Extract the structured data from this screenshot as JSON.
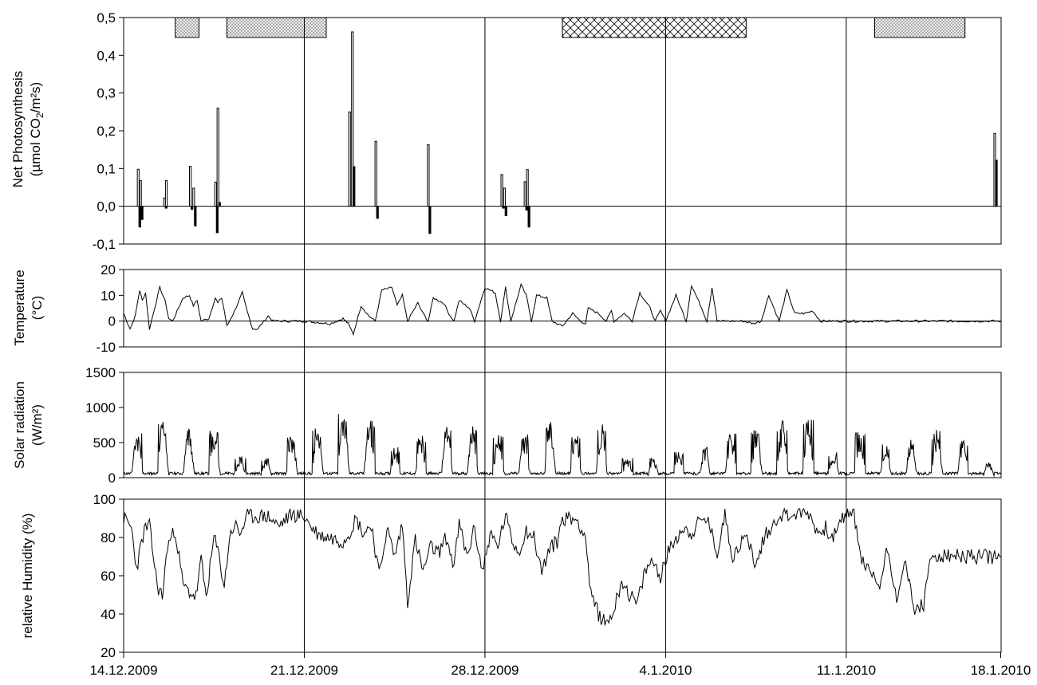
{
  "chart_data": [
    {
      "type": "bar",
      "ylabel_line1": "Net Photosynthesis",
      "ylabel_line2_pre": "(µmol CO",
      "ylabel_line2_sub": "2",
      "ylabel_line2_post": "/m²s)",
      "ylim": [
        -0.1,
        0.5
      ],
      "yticks": [
        "-0,1",
        "0,0",
        "0,1",
        "0,2",
        "0,3",
        "0,4",
        "0,5"
      ],
      "yticks_values": [
        -0.1,
        0,
        0.1,
        0.2,
        0.3,
        0.4,
        0.5
      ],
      "grid": false,
      "x_unit": "days since 14.12.2009",
      "bars": [
        {
          "x": 0.53,
          "values": [
            0.098,
            -0.055
          ]
        },
        {
          "x": 0.62,
          "values": [
            0.068,
            -0.035
          ]
        },
        {
          "x": 1.55,
          "values": [
            0.022,
            -0.005
          ]
        },
        {
          "x": 1.62,
          "values": [
            0.068
          ]
        },
        {
          "x": 2.55,
          "values": [
            0.106,
            -0.008
          ]
        },
        {
          "x": 2.68,
          "values": [
            0.048,
            -0.052
          ]
        },
        {
          "x": 3.53,
          "values": [
            0.064,
            -0.07
          ]
        },
        {
          "x": 3.62,
          "values": [
            0.26,
            0.01
          ]
        },
        {
          "x": 8.72,
          "values": [
            0.25
          ]
        },
        {
          "x": 8.83,
          "values": [
            0.462,
            0.105
          ]
        },
        {
          "x": 9.74,
          "values": [
            0.172,
            -0.032
          ]
        },
        {
          "x": 11.77,
          "values": [
            0.163,
            -0.072
          ]
        },
        {
          "x": 14.62,
          "values": [
            0.084,
            -0.005
          ]
        },
        {
          "x": 14.72,
          "values": [
            0.048,
            -0.025
          ]
        },
        {
          "x": 15.52,
          "values": [
            0.065,
            -0.01
          ]
        },
        {
          "x": 15.61,
          "values": [
            0.097,
            -0.055
          ]
        },
        {
          "x": 33.72,
          "values": [
            0.193,
            0.122
          ]
        }
      ],
      "periods": [
        {
          "start": 2.0,
          "end": 2.92,
          "pattern": "dotted",
          "row": "lower"
        },
        {
          "start": 4.0,
          "end": 7.85,
          "pattern": "dotted",
          "row": "lower"
        },
        {
          "start": 17.0,
          "end": 24.12,
          "pattern": "cross-hatched",
          "row": "lower"
        },
        {
          "start": 29.1,
          "end": 32.6,
          "pattern": "dotted",
          "row": "lower"
        }
      ]
    },
    {
      "type": "line",
      "ylabel_line1": "Temperature",
      "ylabel_line2": "(°C)",
      "ylim": [
        -10,
        20
      ],
      "yticks": [
        "-10",
        "0",
        "10",
        "20"
      ],
      "yticks_values": [
        -10,
        0,
        10,
        20
      ],
      "grid": false,
      "x_unit": "days since 14.12.2009",
      "x": [
        0.0,
        0.25,
        0.45,
        0.62,
        0.72,
        0.85,
        1.0,
        1.2,
        1.4,
        1.6,
        1.75,
        1.9,
        2.3,
        2.55,
        2.7,
        2.85,
        3.0,
        3.3,
        3.55,
        3.65,
        3.8,
        3.9,
        4.0,
        4.3,
        4.6,
        4.75,
        5.0,
        5.2,
        5.6,
        5.8,
        6.0,
        6.2,
        6.5,
        7.0,
        8.0,
        8.5,
        8.6,
        8.7,
        8.9,
        9.2,
        9.5,
        9.75,
        10.0,
        10.4,
        10.6,
        10.8,
        11.0,
        11.4,
        11.6,
        11.8,
        12.0,
        12.4,
        12.6,
        12.8,
        13.0,
        13.4,
        13.6,
        14.0,
        14.4,
        14.6,
        14.8,
        15.0,
        15.4,
        15.6,
        15.8,
        16.0,
        16.4,
        16.6,
        16.8,
        17.0,
        17.4,
        17.7,
        17.9,
        18.0,
        18.4,
        18.7,
        18.9,
        19.0,
        19.4,
        19.7,
        20.0,
        20.4,
        20.6,
        20.8,
        21.0,
        21.4,
        21.6,
        21.8,
        22.0,
        22.4,
        22.6,
        22.8,
        23.0,
        23.4,
        23.6,
        23.8,
        24.0,
        24.4,
        24.7,
        25.0,
        25.4,
        25.7,
        26.0,
        26.4,
        26.7,
        27.0,
        27.4,
        27.7,
        28.0,
        28.4,
        28.6,
        28.8,
        29.0,
        29.4,
        29.6,
        29.8,
        30.0,
        30.4,
        30.6,
        30.8,
        31.0,
        31.4,
        31.7,
        32.0,
        32.4,
        32.6,
        32.8,
        33.0,
        33.4,
        33.7,
        34.0
      ],
      "series": [
        {
          "values": [
            3,
            -3,
            2,
            12,
            8,
            11,
            -3,
            5,
            13,
            8,
            1,
            0,
            9,
            10,
            6,
            8,
            0,
            1,
            9,
            7,
            9,
            4,
            -2,
            4,
            11,
            5,
            -3,
            -3,
            2,
            0,
            0,
            0,
            0,
            0,
            -1,
            1,
            0,
            -1,
            -5,
            6,
            2,
            0,
            12,
            13,
            6,
            10,
            0,
            7,
            3,
            0,
            9,
            7,
            3,
            0,
            8,
            5,
            0,
            13,
            11,
            0,
            13,
            0,
            14,
            10,
            0,
            10,
            9,
            0,
            -1,
            -2,
            3,
            0,
            -1,
            5,
            3,
            0,
            4,
            0,
            3,
            0,
            11,
            5,
            0,
            4,
            0,
            10,
            5,
            0,
            14,
            5,
            0,
            13,
            0,
            0,
            0,
            0,
            0,
            -1,
            0,
            10,
            0,
            12,
            3,
            3,
            4,
            0,
            0,
            0,
            0,
            0,
            0,
            0,
            0,
            0,
            0,
            0,
            0,
            0,
            0,
            0,
            0,
            0,
            0,
            0,
            0,
            0,
            0,
            0,
            0,
            0,
            0
          ]
        }
      ]
    },
    {
      "type": "line",
      "ylabel_line1": "Solar radiation",
      "ylabel_line2": "(W/m²)",
      "ylim": [
        0,
        1500
      ],
      "yticks": [
        "0",
        "500",
        "1000",
        "1500"
      ],
      "yticks_values": [
        0,
        500,
        1000,
        1500
      ],
      "grid": false,
      "x_unit": "days since 14.12.2009",
      "daily_peaks": [
        660,
        850,
        740,
        690,
        330,
        280,
        600,
        760,
        990,
        840,
        440,
        600,
        760,
        740,
        620,
        620,
        820,
        590,
        780,
        280,
        300,
        390,
        440,
        640,
        720,
        820,
        880,
        370,
        660,
        480,
        560,
        680,
        570,
        220
      ]
    },
    {
      "type": "line",
      "ylabel": "relative Humidity (%)",
      "ylim": [
        20,
        100
      ],
      "yticks": [
        "20",
        "40",
        "60",
        "80",
        "100"
      ],
      "yticks_values": [
        20,
        40,
        60,
        80,
        100
      ],
      "grid": false,
      "x_unit": "days since 14.12.2009",
      "x": [
        0.0,
        0.3,
        0.5,
        0.8,
        1.0,
        1.3,
        1.5,
        1.7,
        2.0,
        2.3,
        2.5,
        2.8,
        3.0,
        3.2,
        3.5,
        3.7,
        3.9,
        4.1,
        4.3,
        4.5,
        4.8,
        5.0,
        5.3,
        5.6,
        6.0,
        6.5,
        7.0,
        7.3,
        7.6,
        8.0,
        8.5,
        8.8,
        9.0,
        9.3,
        9.6,
        9.9,
        10.2,
        10.5,
        10.8,
        11.0,
        11.3,
        11.6,
        11.9,
        12.2,
        12.5,
        12.8,
        13.0,
        13.3,
        13.6,
        13.9,
        14.2,
        14.5,
        14.8,
        15.0,
        15.3,
        15.6,
        15.9,
        16.2,
        16.5,
        16.8,
        17.0,
        17.3,
        17.6,
        17.9,
        18.1,
        18.4,
        18.7,
        19.0,
        19.3,
        19.6,
        19.9,
        20.2,
        20.5,
        20.8,
        21.1,
        21.4,
        21.7,
        22.0,
        22.3,
        22.6,
        23.0,
        23.3,
        23.6,
        23.9,
        24.2,
        24.5,
        24.8,
        25.1,
        25.4,
        25.7,
        26.0,
        26.3,
        26.6,
        26.9,
        27.2,
        27.5,
        27.8,
        28.0,
        28.3,
        28.6,
        29.0,
        29.3,
        29.6,
        30.0,
        30.3,
        30.6,
        31.0,
        31.3,
        31.6,
        32.0,
        32.3,
        32.6,
        33.0,
        33.3,
        33.6,
        34.0
      ],
      "series": [
        {
          "values": [
            90,
            85,
            64,
            84,
            86,
            55,
            49,
            76,
            84,
            55,
            52,
            49,
            68,
            49,
            80,
            70,
            54,
            80,
            87,
            82,
            91,
            91,
            91,
            91,
            86,
            92,
            91,
            85,
            81,
            80,
            78,
            84,
            90,
            82,
            87,
            60,
            85,
            70,
            87,
            46,
            79,
            62,
            75,
            72,
            80,
            65,
            87,
            70,
            85,
            62,
            82,
            75,
            92,
            80,
            72,
            84,
            80,
            62,
            74,
            78,
            90,
            90,
            89,
            80,
            50,
            40,
            35,
            42,
            58,
            50,
            45,
            62,
            68,
            60,
            72,
            80,
            85,
            82,
            88,
            90,
            72,
            92,
            70,
            77,
            80,
            64,
            80,
            85,
            92,
            92,
            92,
            93,
            92,
            82,
            85,
            80,
            88,
            93,
            92,
            68,
            60,
            55,
            75,
            46,
            70,
            42,
            45,
            70,
            70,
            70,
            70,
            70,
            70,
            70,
            70,
            70
          ]
        }
      ]
    }
  ],
  "x_axis": {
    "tick_labels": [
      "14.12.2009",
      "21.12.2009",
      "28.12.2009",
      "4.1.2010",
      "11.1.2010",
      "18.1.2010"
    ],
    "tick_days": [
      0,
      7,
      14,
      21,
      28,
      35
    ],
    "domain_days": [
      0,
      34.0
    ]
  }
}
